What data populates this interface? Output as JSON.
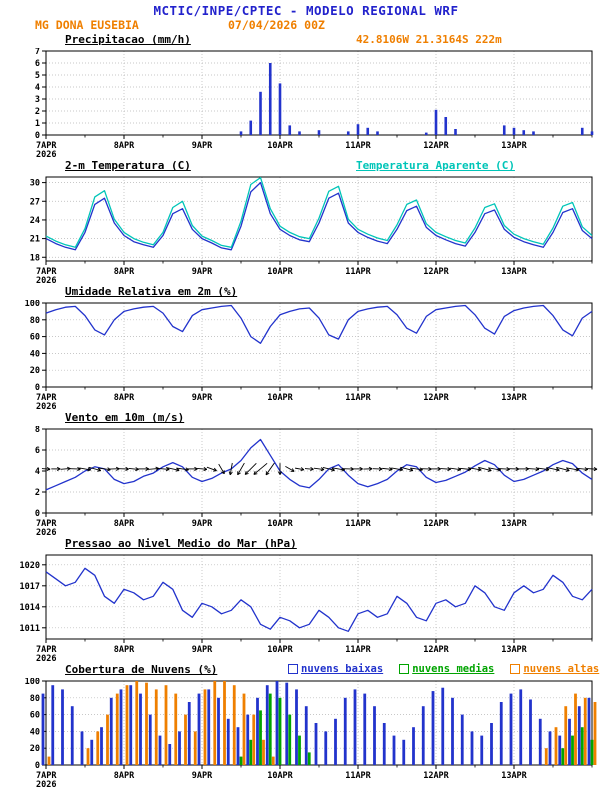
{
  "header": {
    "title": "MCTIC/INPE/CPTEC - MODELO REGIONAL WRF",
    "station": "MG DONA EUSEBIA",
    "run": "07/04/2026 00Z",
    "location": "42.8106W 21.3164S 222m"
  },
  "colors": {
    "header_blue": "#2222cc",
    "orange": "#ef7f00",
    "blue": "#2233cc",
    "cyan": "#00c5b8",
    "green": "#00a400",
    "black": "#000000"
  },
  "x_axis": {
    "start_hour": 0,
    "end_hour": 168,
    "step_hours": 3,
    "minor_tick_hours": 12,
    "tick_hours": [
      0,
      24,
      48,
      72,
      96,
      120,
      144
    ],
    "tick_labels": [
      "7APR",
      "8APR",
      "9APR",
      "10APR",
      "11APR",
      "12APR",
      "13APR"
    ],
    "year_label": "2026"
  },
  "chart_data": [
    {
      "type": "bar",
      "title": "Precipitacao (mm/h)",
      "ylim": [
        0,
        7
      ],
      "yticks": [
        0,
        1,
        2,
        3,
        4,
        5,
        6,
        7
      ],
      "series": [
        {
          "name": "precipitacao",
          "label": "Precipitacao (mm/h)",
          "color_key": "blue",
          "values": [
            0,
            0,
            0,
            0,
            0,
            0,
            0,
            0,
            0,
            0,
            0,
            0,
            0,
            0,
            0,
            0,
            0,
            0,
            0,
            0,
            0.3,
            1.2,
            3.6,
            6.0,
            4.3,
            0.8,
            0.3,
            0,
            0.4,
            0,
            0,
            0.3,
            0.9,
            0.6,
            0.3,
            0,
            0,
            0,
            0,
            0.2,
            2.1,
            1.5,
            0.5,
            0,
            0,
            0,
            0,
            0.8,
            0.6,
            0.4,
            0.3,
            0,
            0,
            0,
            0,
            0.6,
            0.3
          ]
        }
      ]
    },
    {
      "type": "line",
      "title": "2-m Temperatura (C)",
      "right_label": "Temperatura Aparente (C)",
      "ylim": [
        17.4,
        30.9
      ],
      "yticks": [
        18,
        21,
        24,
        27,
        30
      ],
      "series": [
        {
          "name": "temperatura-2m",
          "label": "2-m Temperatura (C)",
          "color_key": "blue",
          "values": [
            21.0,
            20.2,
            19.6,
            19.2,
            22.0,
            26.5,
            27.5,
            23.5,
            21.5,
            20.5,
            20.0,
            19.6,
            21.5,
            25.0,
            25.8,
            22.5,
            21.0,
            20.3,
            19.5,
            19.2,
            23.0,
            28.5,
            30.0,
            25.0,
            22.5,
            21.5,
            20.8,
            20.5,
            23.5,
            27.5,
            28.3,
            23.5,
            22.0,
            21.2,
            20.6,
            20.2,
            22.5,
            25.5,
            26.2,
            22.8,
            21.5,
            20.8,
            20.2,
            19.8,
            22.0,
            25.0,
            25.6,
            22.5,
            21.2,
            20.5,
            20.0,
            19.6,
            22.0,
            25.2,
            25.8,
            22.3,
            21.0
          ]
        },
        {
          "name": "temperatura-aparente",
          "label": "Temperatura Aparente (C)",
          "color_key": "cyan",
          "values": [
            21.4,
            20.6,
            20.0,
            19.6,
            22.6,
            27.7,
            28.7,
            24.1,
            22.0,
            21.0,
            20.4,
            20.0,
            22.0,
            26.0,
            27.0,
            23.1,
            21.4,
            20.7,
            19.9,
            19.6,
            23.8,
            29.7,
            30.8,
            25.8,
            23.0,
            22.0,
            21.3,
            21.0,
            24.3,
            28.6,
            29.4,
            24.1,
            22.5,
            21.7,
            21.1,
            20.7,
            23.2,
            26.5,
            27.2,
            23.4,
            22.0,
            21.3,
            20.7,
            20.3,
            22.7,
            26.0,
            26.6,
            23.1,
            21.7,
            21.0,
            20.5,
            20.1,
            22.7,
            26.2,
            26.8,
            22.9,
            21.5
          ]
        }
      ]
    },
    {
      "type": "line",
      "title": "Umidade Relativa em 2m (%)",
      "ylim": [
        0,
        100
      ],
      "yticks": [
        0,
        20,
        40,
        60,
        80,
        100
      ],
      "series": [
        {
          "name": "umidade-relativa",
          "label": "Umidade Relativa em 2m (%)",
          "color_key": "blue",
          "values": [
            88,
            92,
            95,
            96,
            85,
            68,
            62,
            80,
            90,
            93,
            95,
            96,
            88,
            72,
            66,
            85,
            92,
            94,
            96,
            97,
            82,
            60,
            52,
            72,
            86,
            90,
            93,
            94,
            82,
            62,
            57,
            80,
            90,
            93,
            95,
            96,
            86,
            70,
            64,
            84,
            92,
            94,
            96,
            97,
            86,
            70,
            63,
            84,
            91,
            94,
            96,
            97,
            85,
            68,
            61,
            82,
            90
          ]
        }
      ]
    },
    {
      "type": "line",
      "title": "Vento em 10m (m/s)",
      "ylim": [
        0,
        8
      ],
      "yticks": [
        0,
        2,
        4,
        6,
        8
      ],
      "series": [
        {
          "name": "vento-10m",
          "label": "Vento em 10m (m/s)",
          "color_key": "blue",
          "values": [
            2.2,
            2.6,
            3.0,
            3.4,
            4.0,
            4.4,
            4.2,
            3.2,
            2.8,
            3.0,
            3.5,
            3.8,
            4.4,
            4.8,
            4.4,
            3.4,
            3.0,
            3.3,
            3.8,
            4.2,
            5.0,
            6.2,
            7.0,
            5.5,
            4.0,
            3.2,
            2.6,
            2.4,
            3.2,
            4.2,
            4.6,
            3.6,
            2.8,
            2.5,
            2.8,
            3.2,
            4.0,
            4.6,
            4.4,
            3.4,
            2.9,
            3.1,
            3.5,
            3.9,
            4.5,
            5.0,
            4.6,
            3.6,
            3.0,
            3.2,
            3.6,
            4.0,
            4.6,
            5.0,
            4.7,
            3.8,
            3.2
          ]
        }
      ],
      "arrows": {
        "anchor_value": 4.2,
        "color_key": "black",
        "dirs_deg": [
          95,
          90,
          85,
          92,
          100,
          105,
          98,
          88,
          92,
          96,
          90,
          85,
          95,
          102,
          98,
          90,
          95,
          110,
          150,
          190,
          210,
          225,
          230,
          215,
          180,
          120,
          100,
          95,
          98,
          104,
          100,
          92,
          90,
          88,
          92,
          96,
          100,
          104,
          98,
          92,
          90,
          94,
          98,
          96,
          100,
          104,
          100,
          94,
          92,
          90,
          94,
          98,
          102,
          104,
          100,
          96,
          94
        ]
      }
    },
    {
      "type": "line",
      "title": "Pressao ao Nivel Medio do Mar (hPa)",
      "ylim": [
        1009.4,
        1021.4
      ],
      "yticks": [
        1011,
        1014,
        1017,
        1020
      ],
      "series": [
        {
          "name": "pressao-nivel-mar",
          "label": "Pressao ao Nivel Medio do Mar (hPa)",
          "color_key": "blue",
          "values": [
            1019.0,
            1018.0,
            1017.0,
            1017.5,
            1019.5,
            1018.5,
            1015.5,
            1014.5,
            1016.5,
            1016.0,
            1015.0,
            1015.5,
            1017.5,
            1016.5,
            1013.5,
            1012.5,
            1014.5,
            1014.0,
            1013.0,
            1013.5,
            1015.0,
            1014.0,
            1011.5,
            1010.8,
            1012.5,
            1012.0,
            1011.0,
            1011.5,
            1013.5,
            1012.5,
            1011.0,
            1010.5,
            1013.0,
            1013.5,
            1012.5,
            1013.0,
            1015.5,
            1014.5,
            1012.5,
            1012.0,
            1014.5,
            1015.0,
            1014.0,
            1014.5,
            1017.0,
            1016.0,
            1014.0,
            1013.5,
            1016.0,
            1017.0,
            1016.0,
            1016.5,
            1018.5,
            1017.5,
            1015.5,
            1015.0,
            1016.5
          ]
        }
      ]
    },
    {
      "type": "bar",
      "title": "Cobertura de Nuvens (%)",
      "ylim": [
        0,
        100
      ],
      "yticks": [
        0,
        20,
        40,
        60,
        80,
        100
      ],
      "series": [
        {
          "name": "nuvens-baixas",
          "label": "nuvens baixas",
          "color_key": "blue",
          "values": [
            85,
            95,
            90,
            70,
            40,
            30,
            45,
            80,
            90,
            95,
            85,
            60,
            35,
            25,
            40,
            75,
            85,
            90,
            80,
            55,
            45,
            60,
            80,
            95,
            100,
            98,
            90,
            70,
            50,
            40,
            55,
            80,
            90,
            85,
            70,
            50,
            35,
            30,
            45,
            70,
            88,
            92,
            80,
            60,
            40,
            35,
            50,
            75,
            85,
            90,
            78,
            55,
            40,
            35,
            55,
            70,
            80
          ]
        },
        {
          "name": "nuvens-medias",
          "label": "nuvens medias",
          "color_key": "green",
          "values": [
            0,
            0,
            0,
            0,
            0,
            0,
            0,
            0,
            0,
            0,
            0,
            0,
            0,
            0,
            0,
            0,
            0,
            0,
            0,
            0,
            10,
            30,
            65,
            85,
            80,
            60,
            35,
            15,
            0,
            0,
            0,
            0,
            0,
            0,
            0,
            0,
            0,
            0,
            0,
            0,
            0,
            0,
            0,
            0,
            0,
            0,
            0,
            0,
            0,
            0,
            0,
            0,
            0,
            20,
            35,
            45,
            30
          ]
        },
        {
          "name": "nuvens-altas",
          "label": "nuvens altas",
          "color_key": "orange",
          "values": [
            10,
            0,
            0,
            0,
            20,
            40,
            60,
            85,
            95,
            100,
            98,
            90,
            95,
            85,
            60,
            40,
            90,
            100,
            100,
            95,
            85,
            60,
            30,
            10,
            0,
            0,
            0,
            0,
            0,
            0,
            0,
            0,
            0,
            0,
            0,
            0,
            0,
            0,
            0,
            0,
            0,
            0,
            0,
            0,
            0,
            0,
            0,
            0,
            0,
            0,
            0,
            20,
            45,
            70,
            85,
            80,
            75
          ]
        }
      ]
    }
  ]
}
